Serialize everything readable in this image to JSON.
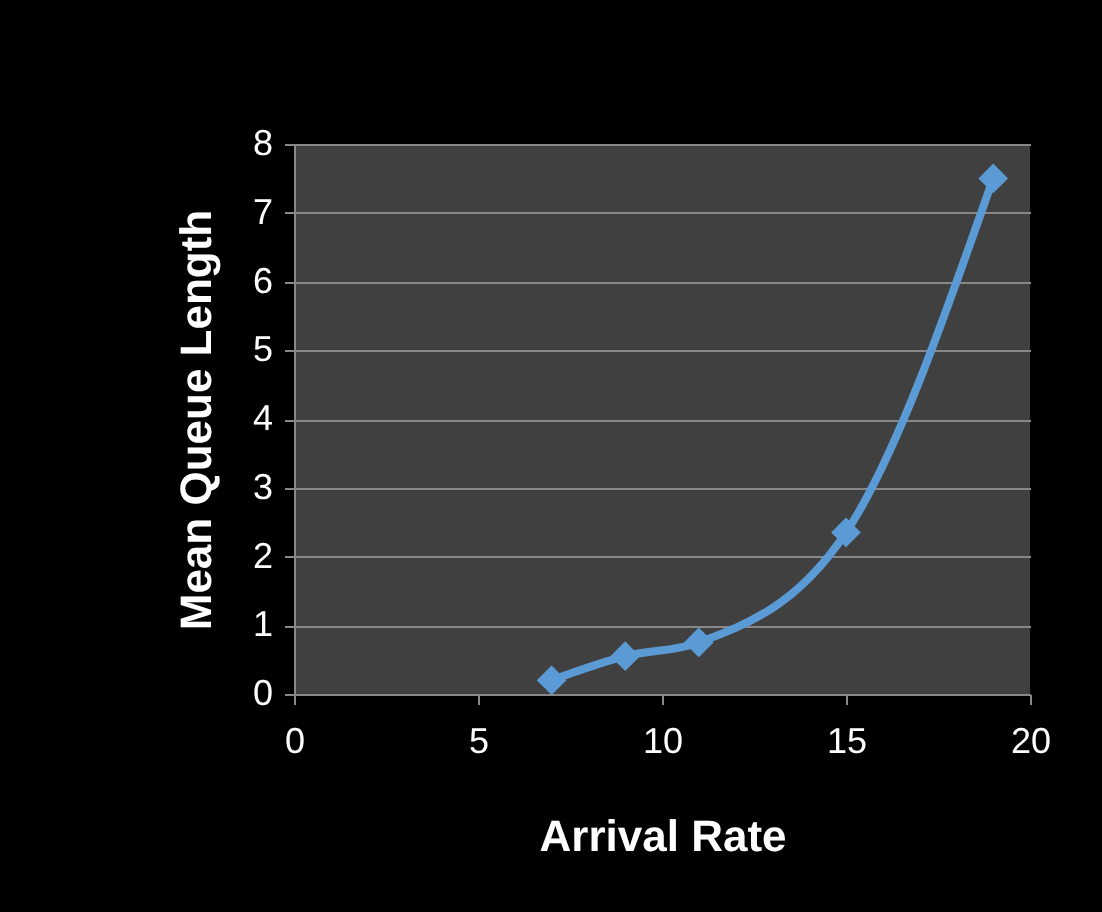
{
  "chart_data": {
    "type": "line",
    "xlabel": "Arrival Rate",
    "ylabel": "Mean Queue Length",
    "x": [
      7,
      9,
      11,
      15,
      19
    ],
    "series": [
      {
        "color": "#5b9bd5",
        "values": [
          0.2,
          0.55,
          0.75,
          2.35,
          7.5
        ]
      }
    ],
    "xlim": [
      0,
      20
    ],
    "xticks": [
      0,
      5,
      10,
      15,
      20
    ],
    "ylim": [
      0,
      8
    ],
    "yticks": [
      0,
      1,
      2,
      3,
      4,
      5,
      6,
      7,
      8
    ],
    "grid": "y",
    "marker": "diamond",
    "line_style": "solid",
    "legend": false
  }
}
